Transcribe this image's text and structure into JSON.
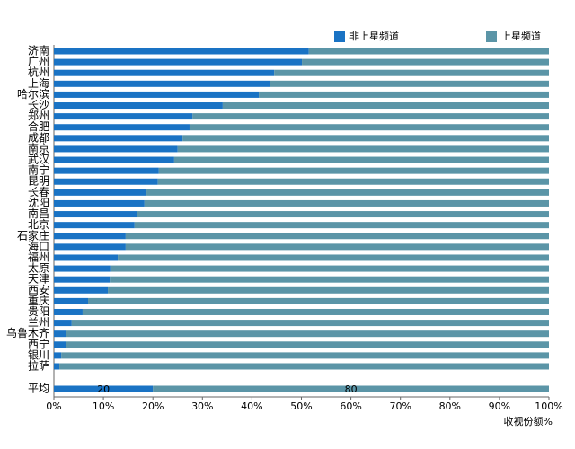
{
  "chart_data": {
    "type": "bar",
    "orientation": "horizontal",
    "stacked": true,
    "categories": [
      "济南",
      "广州",
      "杭州",
      "上海",
      "哈尔滨",
      "长沙",
      "郑州",
      "合肥",
      "成都",
      "南京",
      "武汉",
      "南宁",
      "昆明",
      "长春",
      "沈阳",
      "南昌",
      "北京",
      "石家庄",
      "海口",
      "福州",
      "太原",
      "天津",
      "西安",
      "重庆",
      "贵阳",
      "兰州",
      "乌鲁木齐",
      "西宁",
      "银川",
      "拉萨"
    ],
    "series": [
      {
        "name": "非上星频道",
        "color": "#1a73c4",
        "values": [
          51.5,
          50.1,
          44.5,
          43.7,
          41.4,
          34.1,
          28.0,
          27.4,
          26.0,
          25.0,
          24.3,
          21.2,
          21.0,
          18.7,
          18.3,
          16.7,
          16.3,
          14.5,
          14.5,
          12.9,
          11.4,
          11.3,
          10.9,
          6.9,
          5.8,
          3.6,
          2.4,
          2.4,
          1.5,
          1.1
        ]
      },
      {
        "name": "上星频道",
        "color": "#5b95a7",
        "values": [
          48.5,
          49.9,
          55.5,
          56.3,
          58.6,
          65.9,
          72.0,
          72.6,
          74.0,
          75.0,
          75.7,
          78.8,
          79.0,
          81.3,
          81.7,
          83.3,
          83.7,
          85.5,
          85.5,
          87.1,
          88.6,
          88.7,
          89.1,
          93.1,
          94.2,
          96.4,
          97.6,
          97.6,
          98.5,
          98.9
        ]
      }
    ],
    "average": {
      "category": "平均",
      "values": [
        20,
        80
      ]
    },
    "xlim": [
      0,
      100
    ],
    "xticks": [
      {
        "value": 0,
        "label": "0%"
      },
      {
        "value": 10,
        "label": "10%"
      },
      {
        "value": 20,
        "label": "20%"
      },
      {
        "value": 30,
        "label": "30%"
      },
      {
        "value": 40,
        "label": "40%"
      },
      {
        "value": 50,
        "label": "50%"
      },
      {
        "value": 60,
        "label": "60%"
      },
      {
        "value": 70,
        "label": "70%"
      },
      {
        "value": 80,
        "label": "80%"
      },
      {
        "value": 90,
        "label": "90%"
      },
      {
        "value": 100,
        "label": "100%"
      }
    ],
    "x_label": "收视份额%"
  }
}
